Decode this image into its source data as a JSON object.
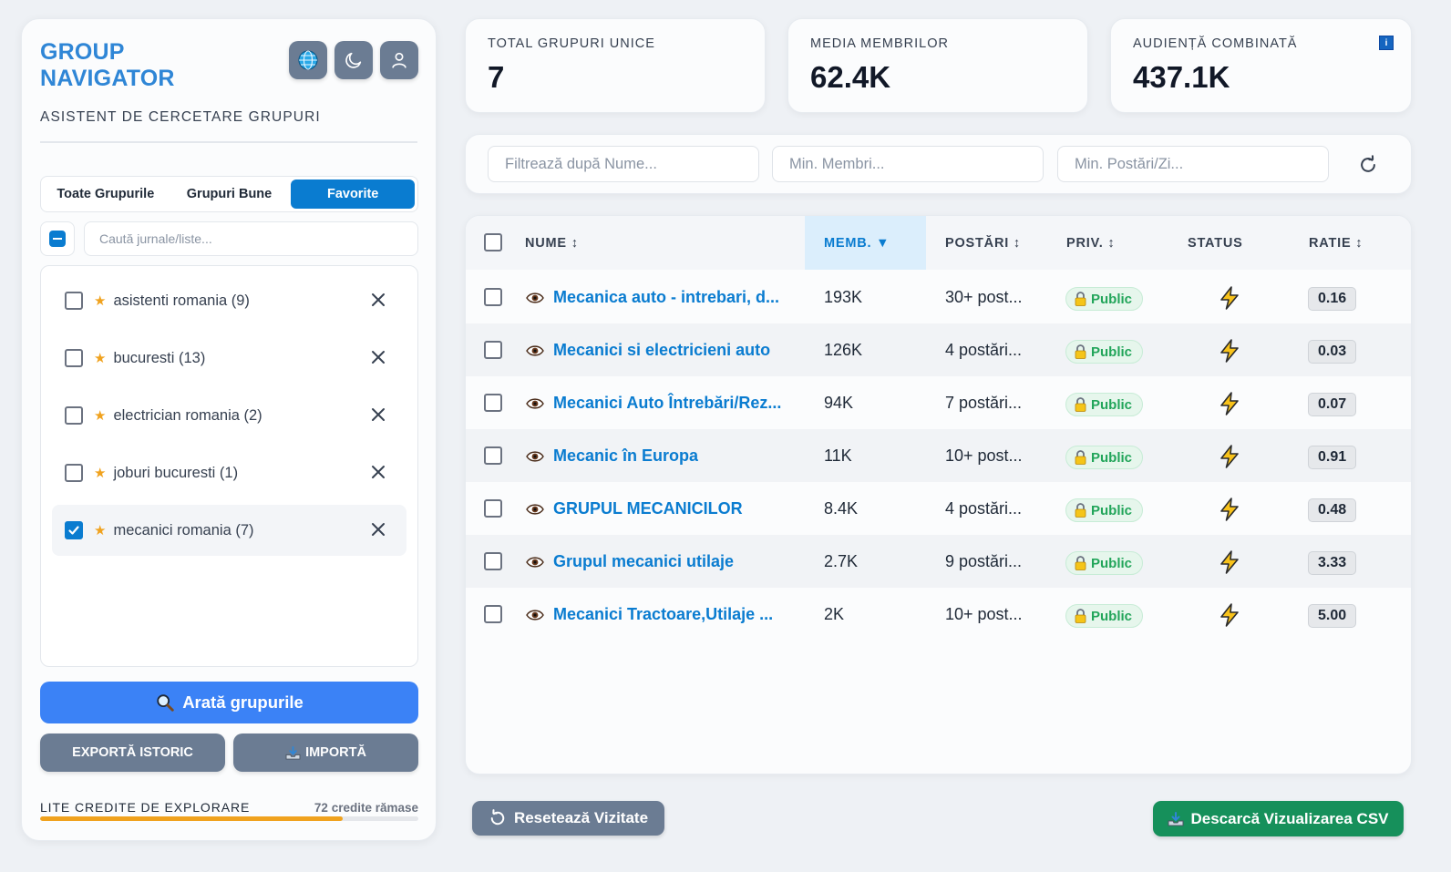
{
  "brand": {
    "line1": "GROUP",
    "line2": "NAVIGATOR",
    "subtitle": "ASISTENT DE CERCETARE GRUPURI"
  },
  "header_icons": [
    "globe-icon",
    "moon-icon",
    "user-icon"
  ],
  "tabs": [
    {
      "label": "Toate Grupurile",
      "active": false
    },
    {
      "label": "Grupuri Bune",
      "active": false
    },
    {
      "label": "Favorite",
      "active": true
    }
  ],
  "list_search": {
    "placeholder": "Caută jurnale/liste..."
  },
  "lists": [
    {
      "label": "asistenti romania (9)",
      "checked": false
    },
    {
      "label": "bucuresti (13)",
      "checked": false
    },
    {
      "label": "electrician romania (2)",
      "checked": false
    },
    {
      "label": "joburi bucuresti (1)",
      "checked": false
    },
    {
      "label": "mecanici romania (7)",
      "checked": true
    }
  ],
  "actions": {
    "show": "Arată grupurile",
    "export": "EXPORTĂ ISTORIC",
    "import": "IMPORTĂ"
  },
  "credits": {
    "label": "LITE CREDITE DE EXPLORARE",
    "value": "72 credite rămase",
    "progress_fraction": 0.8
  },
  "stats": [
    {
      "label": "TOTAL GRUPURI UNICE",
      "value": "7"
    },
    {
      "label": "MEDIA MEMBRILOR",
      "value": "62.4K"
    },
    {
      "label": "AUDIENȚĂ COMBINATĂ",
      "value": "437.1K",
      "badge": "i"
    }
  ],
  "filters": {
    "name_placeholder": "Filtrează după Nume...",
    "members_placeholder": "Min. Membri...",
    "posts_placeholder": "Min. Postări/Zi..."
  },
  "table": {
    "columns": {
      "name": "NUME ↕",
      "members": "MEMB. ▼",
      "posts": "POSTĂRI ↕",
      "privacy": "PRIV. ↕",
      "status": "STATUS",
      "ratio": "RATIE ↕"
    },
    "rows": [
      {
        "name": "Mecanica auto - intrebari, d...",
        "members": "193K",
        "posts": "30+ post...",
        "privacy": "Public",
        "ratio": "0.16"
      },
      {
        "name": "Mecanici si electricieni auto",
        "members": "126K",
        "posts": "4 postări...",
        "privacy": "Public",
        "ratio": "0.03"
      },
      {
        "name": "Mecanici Auto Întrebări/Rez...",
        "members": "94K",
        "posts": "7 postări...",
        "privacy": "Public",
        "ratio": "0.07"
      },
      {
        "name": "Mecanic în Europa",
        "members": "11K",
        "posts": "10+ post...",
        "privacy": "Public",
        "ratio": "0.91"
      },
      {
        "name": "GRUPUL MECANICILOR",
        "members": "8.4K",
        "posts": "4 postări...",
        "privacy": "Public",
        "ratio": "0.48"
      },
      {
        "name": "Grupul mecanici utilaje",
        "members": "2.7K",
        "posts": "9 postări...",
        "privacy": "Public",
        "ratio": "3.33"
      },
      {
        "name": "Mecanici Tractoare,Utilaje ...",
        "members": "2K",
        "posts": "10+ post...",
        "privacy": "Public",
        "ratio": "5.00"
      }
    ]
  },
  "footer": {
    "reset": "Resetează Vizitate",
    "csv": "Descarcă Vizualizarea CSV"
  },
  "colors": {
    "brand": "#2f86d6",
    "accent": "#0a7cd0",
    "primary_button": "#3b82f6",
    "secondary_button": "#6b7c93",
    "csv_button": "#16905b",
    "credits_bar": "#f0a21e",
    "public_badge": "#22a55a"
  }
}
